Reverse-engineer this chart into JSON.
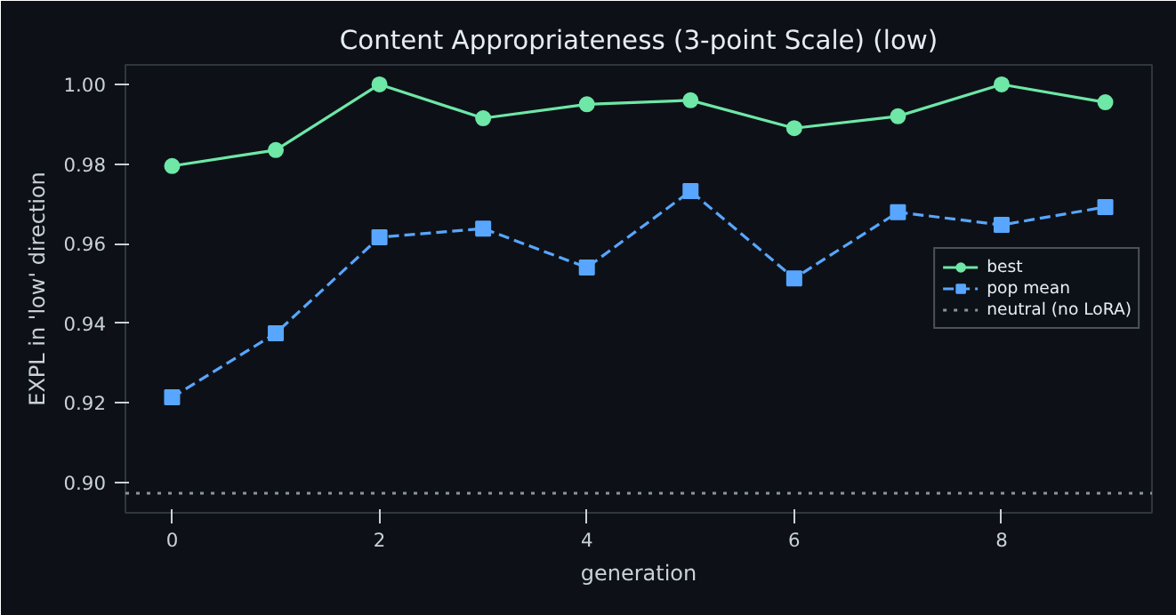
{
  "chart_data": {
    "type": "line",
    "title": "Content Appropriateness (3-point Scale) (low)",
    "xlabel": "generation",
    "ylabel": "EXPL in 'low' direction",
    "x": [
      0,
      1,
      2,
      3,
      4,
      5,
      6,
      7,
      8,
      9
    ],
    "series": [
      {
        "name": "best",
        "color": "#6ee7a7",
        "marker": "circle",
        "line_style": "solid",
        "values": [
          0.9795,
          0.9835,
          1.0,
          0.9915,
          0.995,
          0.996,
          0.989,
          0.992,
          1.0,
          0.9955
        ]
      },
      {
        "name": "pop mean",
        "color": "#58a6ff",
        "marker": "square",
        "line_style": "dashed",
        "values": [
          0.9214,
          0.9375,
          0.9616,
          0.9638,
          0.954,
          0.9732,
          0.9513,
          0.9679,
          0.9647,
          0.9692
        ]
      }
    ],
    "ref_lines": [
      {
        "axis": "y",
        "value": 0.8973,
        "label": "neutral (no LoRA)",
        "color": "#8b949e",
        "line_style": "dotted"
      }
    ],
    "xlim": [
      -0.45,
      9.45
    ],
    "ylim": [
      0.8924,
      1.0049
    ],
    "xticks": [
      0,
      2,
      4,
      6,
      8
    ],
    "yticks": [
      {
        "value": 0.9,
        "label": "0.90"
      },
      {
        "value": 0.92,
        "label": "0.92"
      },
      {
        "value": 0.94,
        "label": "0.94"
      },
      {
        "value": 0.96,
        "label": "0.96"
      },
      {
        "value": 0.98,
        "label": "0.98"
      },
      {
        "value": 1.0,
        "label": "1.00"
      }
    ],
    "grid": false,
    "legend": "center right"
  }
}
